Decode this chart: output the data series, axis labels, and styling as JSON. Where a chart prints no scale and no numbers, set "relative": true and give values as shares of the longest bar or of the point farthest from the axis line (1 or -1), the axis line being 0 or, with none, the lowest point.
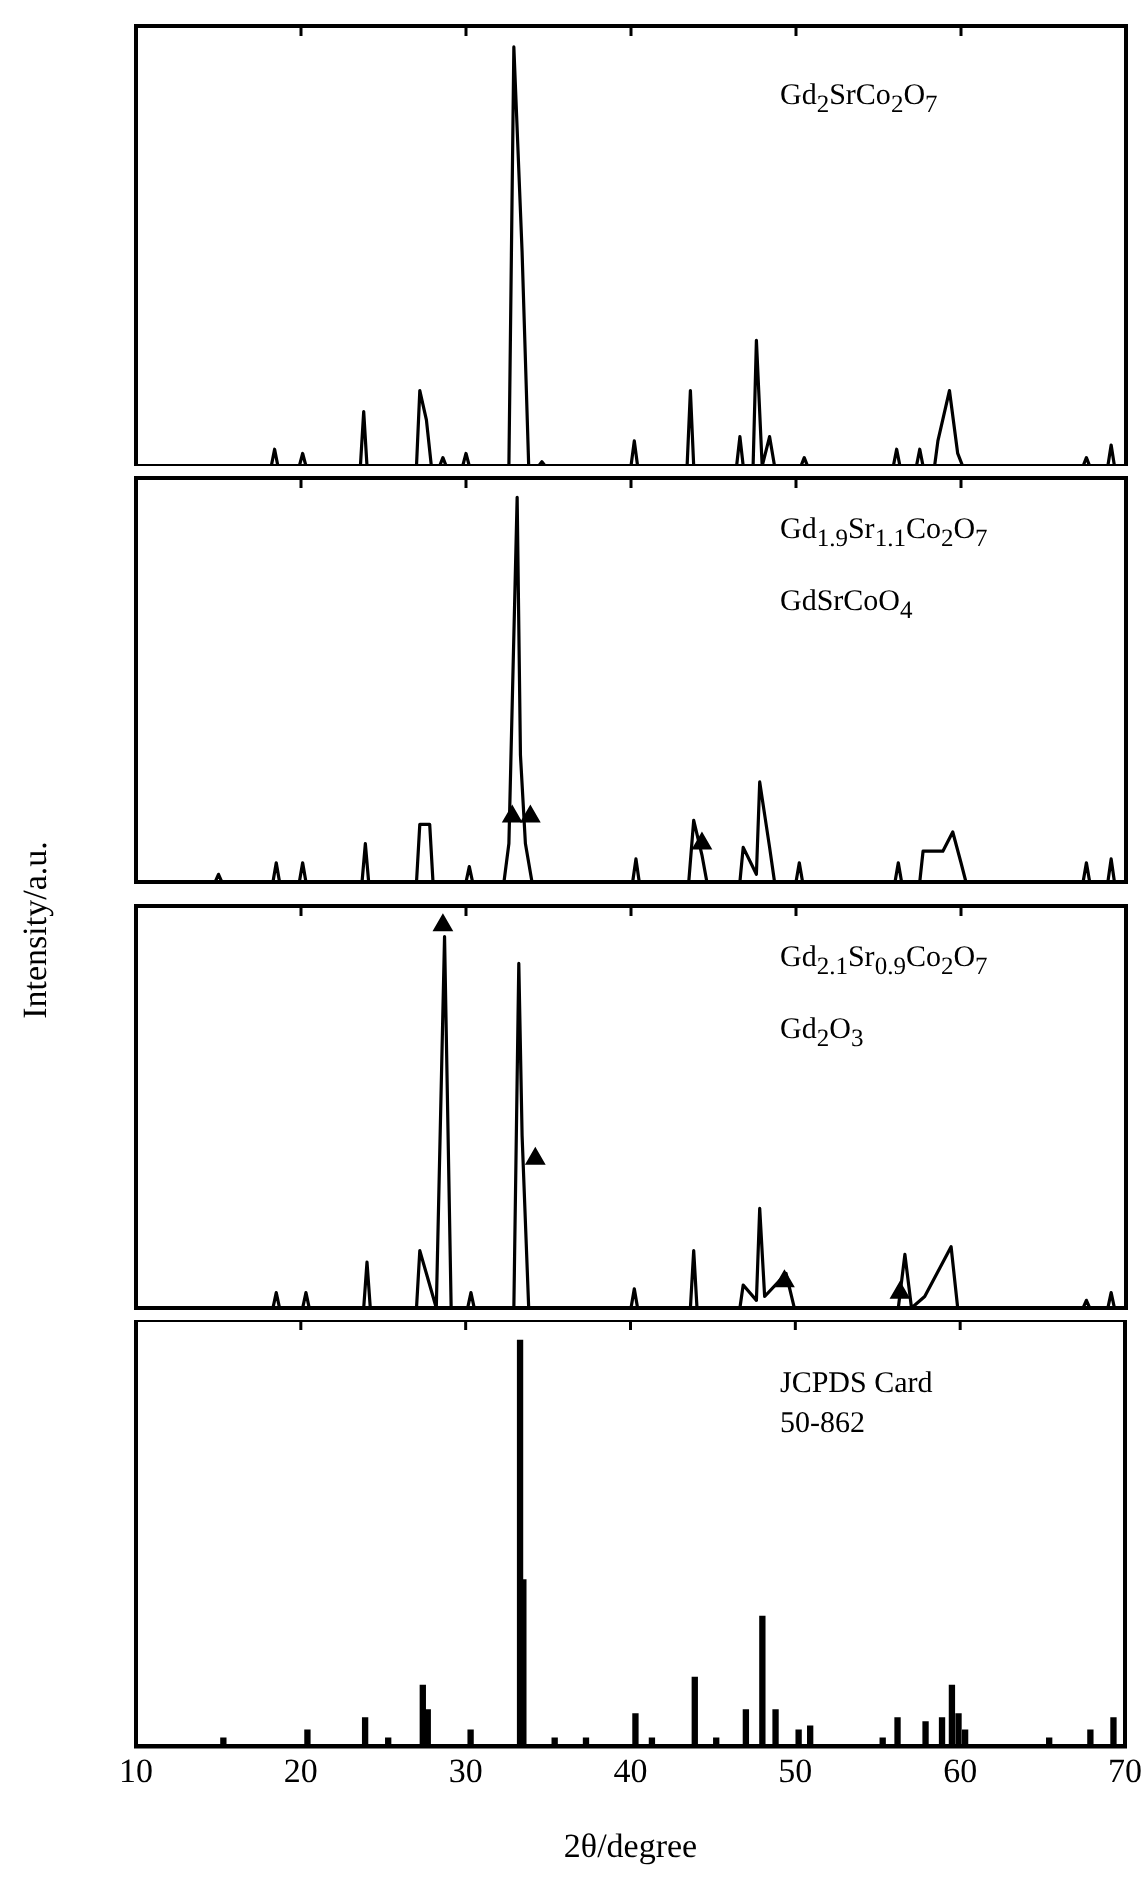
{
  "chart_data": [
    {
      "type": "line",
      "relative": true,
      "xlim": [
        10,
        70
      ],
      "xticks": [
        10,
        20,
        30,
        40,
        50,
        60,
        70
      ],
      "tick_labels": false,
      "grid": false,
      "legend": false,
      "annotations": [
        "Gd$_{2}$SrCo$_{2}$O$_{7}$"
      ],
      "series": [
        {
          "color": "#000000",
          "x": [
            10,
            18.2,
            18.4,
            18.6,
            19.9,
            20.1,
            20.3,
            23.6,
            23.8,
            24,
            27,
            27.2,
            27.6,
            27.9,
            28.4,
            28.6,
            28.8,
            29.8,
            30,
            30.2,
            32.6,
            32.9,
            33.4,
            33.8,
            34.4,
            34.6,
            34.8,
            40,
            40.2,
            40.4,
            43.4,
            43.6,
            43.8,
            46.4,
            46.6,
            46.8,
            47.4,
            47.6,
            47.95,
            48.4,
            48.7,
            50.3,
            50.5,
            50.7,
            55.9,
            56.1,
            56.3,
            57.3,
            57.5,
            57.7,
            58.4,
            58.6,
            59.3,
            59.8,
            60.1,
            67.4,
            67.6,
            67.8,
            68.9,
            69.1,
            69.3,
            70
          ],
          "values": [
            0,
            0,
            0.04,
            0,
            0,
            0.03,
            0,
            0,
            0.13,
            0,
            0,
            0.18,
            0.11,
            0,
            0,
            0.02,
            0,
            0,
            0.03,
            0,
            0,
            1,
            0.51,
            0,
            0,
            0.01,
            0,
            0,
            0.06,
            0,
            0,
            0.18,
            0,
            0,
            0.07,
            0,
            0,
            0.3,
            0,
            0.07,
            0,
            0,
            0.02,
            0,
            0,
            0.04,
            0,
            0,
            0.04,
            0,
            0,
            0.06,
            0.18,
            0.03,
            0,
            0,
            0.02,
            0,
            0,
            0.05,
            0,
            0
          ]
        }
      ]
    },
    {
      "type": "line",
      "relative": true,
      "xlim": [
        10,
        70
      ],
      "xticks": [
        10,
        20,
        30,
        40,
        50,
        60,
        70
      ],
      "tick_labels": false,
      "grid": false,
      "legend": false,
      "ylabel": "Intensity/a.u.",
      "annotations": [
        "Gd$_{1.9}$Sr$_{1.1}$Co$_{2}$O$_{7}$",
        "GdSrCoO$_{4}$"
      ],
      "series": [
        {
          "color": "#000000",
          "x": [
            10,
            14.8,
            15,
            15.2,
            18.3,
            18.5,
            18.7,
            19.9,
            20.1,
            20.3,
            23.7,
            23.9,
            24.1,
            27,
            27.2,
            27.8,
            28,
            30,
            30.2,
            30.4,
            32.3,
            32.6,
            33.1,
            33.3,
            33.6,
            34,
            40.1,
            40.3,
            40.5,
            43.5,
            43.8,
            44.3,
            44.6,
            46.6,
            46.8,
            47.6,
            47.8,
            48.4,
            48.7,
            50,
            50.2,
            50.4,
            56,
            56.2,
            56.4,
            57.5,
            57.7,
            58.9,
            59.5,
            60,
            60.3,
            67.4,
            67.6,
            67.8,
            68.9,
            69.1,
            69.3,
            70
          ],
          "values": [
            0,
            0,
            0.02,
            0,
            0,
            0.05,
            0,
            0,
            0.05,
            0,
            0,
            0.1,
            0,
            0,
            0.15,
            0.15,
            0,
            0,
            0.04,
            0,
            0,
            0.1,
            1,
            0.33,
            0.1,
            0,
            0,
            0.06,
            0,
            0,
            0.16,
            0.07,
            0,
            0,
            0.09,
            0.02,
            0.26,
            0.09,
            0,
            0,
            0.05,
            0,
            0,
            0.05,
            0,
            0,
            0.08,
            0.08,
            0.13,
            0.05,
            0,
            0,
            0.05,
            0,
            0,
            0.06,
            0,
            0
          ]
        },
        {
          "type": "scatter",
          "marker": "triangle",
          "color": "#000000",
          "x": [
            32.8,
            33.9,
            44.3
          ],
          "values": [
            0.17,
            0.17,
            0.1
          ]
        }
      ]
    },
    {
      "type": "line",
      "relative": true,
      "xlim": [
        10,
        70
      ],
      "xticks": [
        10,
        20,
        30,
        40,
        50,
        60,
        70
      ],
      "tick_labels": false,
      "grid": false,
      "legend": false,
      "annotations": [
        "Gd$_{2.1}$Sr$_{0.9}$Co$_{2}$O$_{7}$",
        "Gd$_{2}$O$_{3}$"
      ],
      "series": [
        {
          "color": "#000000",
          "x": [
            10,
            18.3,
            18.5,
            18.7,
            20.1,
            20.3,
            20.5,
            23.8,
            24,
            24.2,
            27,
            27.2,
            27.6,
            28.2,
            28.7,
            29.1,
            30.1,
            30.3,
            30.5,
            32.9,
            33.2,
            33.4,
            33.8,
            40,
            40.2,
            40.4,
            43.6,
            43.8,
            44,
            46.6,
            46.8,
            47.6,
            47.8,
            48.1,
            49.4,
            49.9,
            56.2,
            56.6,
            57,
            57.8,
            59.4,
            59.8,
            67.4,
            67.6,
            67.8,
            68.9,
            69.1,
            69.3,
            70
          ],
          "values": [
            0,
            0,
            0.04,
            0,
            0,
            0.04,
            0,
            0,
            0.12,
            0,
            0,
            0.15,
            0.09,
            0,
            0.97,
            0,
            0,
            0.04,
            0,
            0,
            0.9,
            0.45,
            0,
            0,
            0.05,
            0,
            0,
            0.15,
            0,
            0,
            0.06,
            0.02,
            0.26,
            0.03,
            0.09,
            0,
            0,
            0.14,
            0,
            0.03,
            0.16,
            0,
            0,
            0.02,
            0,
            0,
            0.04,
            0,
            0
          ]
        },
        {
          "type": "scatter",
          "marker": "triangle",
          "color": "#000000",
          "x": [
            28.6,
            34.2,
            49.3,
            56.3
          ],
          "values": [
            1,
            0.39,
            0.07,
            0.04
          ]
        }
      ]
    },
    {
      "type": "bar",
      "relative": true,
      "xlim": [
        10,
        70
      ],
      "xticks": [
        10,
        20,
        30,
        40,
        50,
        60,
        70
      ],
      "tick_labels": "x",
      "grid": false,
      "legend": false,
      "xlabel": "2θ/degree",
      "annotations": [
        "JCPDS Card\n50-862"
      ],
      "series": [
        {
          "color": "#000000",
          "x": [
            15.3,
            20.4,
            23.9,
            25.3,
            27.4,
            27.7,
            30.3,
            33.3,
            33.5,
            35.4,
            37.3,
            40.3,
            41.3,
            43.9,
            45.2,
            47,
            48,
            48.8,
            50.2,
            50.9,
            55.3,
            56.2,
            57.9,
            58.9,
            59.5,
            59.9,
            60.3,
            65.4,
            67.9,
            69.3
          ],
          "values": [
            0.02,
            0.04,
            0.07,
            0.02,
            0.15,
            0.09,
            0.04,
            1,
            0.41,
            0.02,
            0.02,
            0.08,
            0.02,
            0.17,
            0.02,
            0.09,
            0.32,
            0.09,
            0.04,
            0.05,
            0.02,
            0.07,
            0.06,
            0.07,
            0.15,
            0.08,
            0.04,
            0.02,
            0.04,
            0.07
          ]
        }
      ]
    }
  ]
}
